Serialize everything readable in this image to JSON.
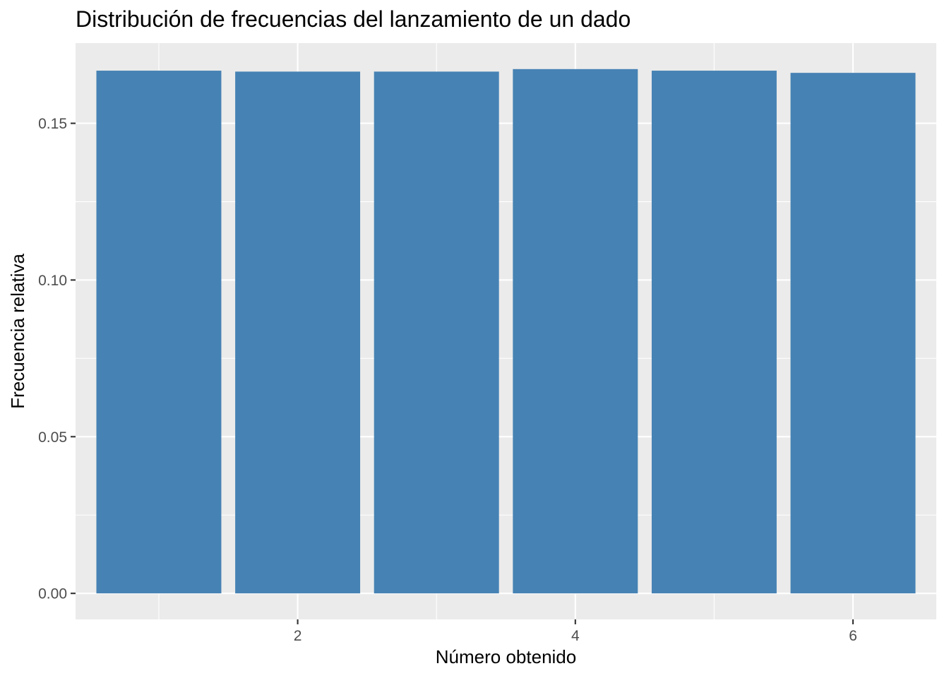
{
  "chart_data": {
    "type": "bar",
    "title": "Distribución de frecuencias del lanzamiento de un dado",
    "xlabel": "Número obtenido",
    "ylabel": "Frecuencia relativa",
    "categories": [
      1,
      2,
      3,
      4,
      5,
      6
    ],
    "values": [
      0.1668,
      0.1665,
      0.1665,
      0.1673,
      0.1668,
      0.1661
    ],
    "xlim": [
      0.4,
      6.6
    ],
    "ylim": [
      -0.0083,
      0.1756
    ],
    "x_ticks": [
      2,
      4,
      6
    ],
    "x_tick_labels": [
      "2",
      "4",
      "6"
    ],
    "x_minor_ticks": [
      1,
      3,
      5
    ],
    "y_ticks": [
      0.0,
      0.05,
      0.1,
      0.15
    ],
    "y_tick_labels": [
      "0.00",
      "0.05",
      "0.10",
      "0.15"
    ],
    "y_minor_ticks": [
      0.025,
      0.075,
      0.125
    ],
    "grid": true,
    "legend": "none",
    "colors": {
      "bar": "#4682B4",
      "panel": "#EBEBEB",
      "grid": "#FFFFFF"
    }
  }
}
